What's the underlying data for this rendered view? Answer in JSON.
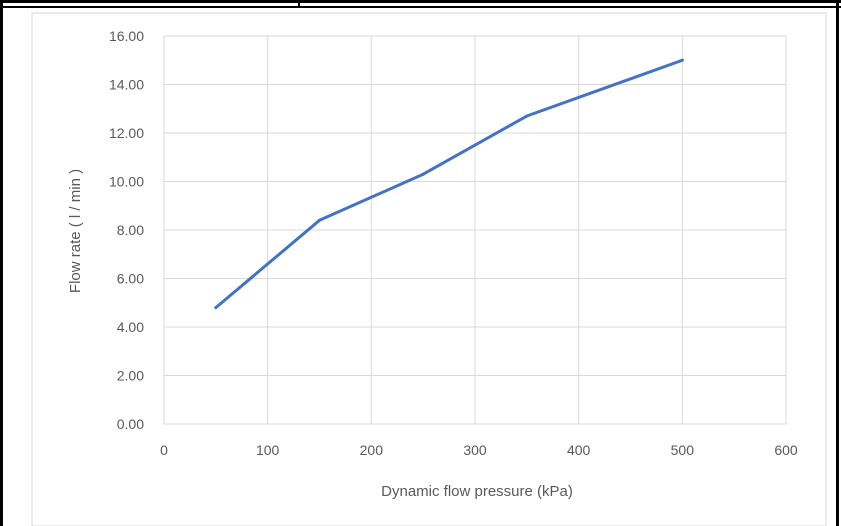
{
  "chart_data": {
    "type": "line",
    "title": "",
    "xlabel": "Dynamic flow pressure (kPa)",
    "ylabel": "Flow rate ( l / min )",
    "xlim": [
      0,
      600
    ],
    "ylim": [
      0,
      16
    ],
    "x_ticks": [
      "0",
      "100",
      "200",
      "300",
      "400",
      "500",
      "600"
    ],
    "y_ticks": [
      "0.00",
      "2.00",
      "4.00",
      "6.00",
      "8.00",
      "10.00",
      "12.00",
      "14.00",
      "16.00"
    ],
    "grid": true,
    "legend": "none",
    "series": [
      {
        "x": [
          50,
          150,
          250,
          350,
          500
        ],
        "values": [
          4.8,
          8.4,
          10.3,
          12.7,
          15.0
        ]
      }
    ],
    "colors": {
      "line": "#4472C4",
      "grid": "#D9D9D9",
      "text": "#595959",
      "frame": "#000000",
      "chart_border": "#D9D9D9"
    }
  }
}
